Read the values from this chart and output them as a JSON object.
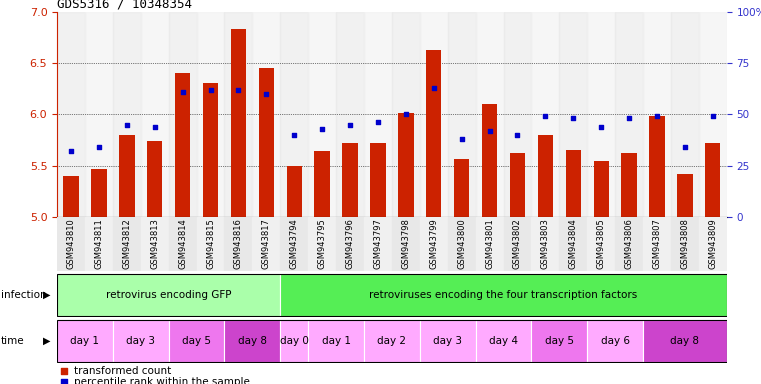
{
  "title": "GDS5316 / 10348354",
  "samples": [
    "GSM943810",
    "GSM943811",
    "GSM943812",
    "GSM943813",
    "GSM943814",
    "GSM943815",
    "GSM943816",
    "GSM943817",
    "GSM943794",
    "GSM943795",
    "GSM943796",
    "GSM943797",
    "GSM943798",
    "GSM943799",
    "GSM943800",
    "GSM943801",
    "GSM943802",
    "GSM943803",
    "GSM943804",
    "GSM943805",
    "GSM943806",
    "GSM943807",
    "GSM943808",
    "GSM943809"
  ],
  "bar_values": [
    5.4,
    5.47,
    5.8,
    5.74,
    6.4,
    6.3,
    6.83,
    6.45,
    5.5,
    5.64,
    5.72,
    5.72,
    6.01,
    6.63,
    5.56,
    6.1,
    5.62,
    5.8,
    5.65,
    5.54,
    5.62,
    5.98,
    5.42,
    5.72
  ],
  "percentile_values": [
    32,
    34,
    45,
    44,
    61,
    62,
    62,
    60,
    40,
    43,
    45,
    46,
    50,
    63,
    38,
    42,
    40,
    49,
    48,
    44,
    48,
    49,
    34,
    49
  ],
  "ylim_left": [
    5.0,
    7.0
  ],
  "ylim_right": [
    0,
    100
  ],
  "yticks_left": [
    5.0,
    5.5,
    6.0,
    6.5,
    7.0
  ],
  "ytick_labels_right": [
    "0",
    "25",
    "50",
    "75",
    "100%"
  ],
  "bar_color": "#cc2200",
  "percentile_color": "#0000cc",
  "bar_bottom": 5.0,
  "infection_groups": [
    {
      "label": "retrovirus encoding GFP",
      "start": 0,
      "end": 8,
      "color": "#aaffaa"
    },
    {
      "label": "retroviruses encoding the four transcription factors",
      "start": 8,
      "end": 24,
      "color": "#55ee55"
    }
  ],
  "time_groups": [
    {
      "label": "day 1",
      "start": 0,
      "end": 2,
      "color": "#ffaaff"
    },
    {
      "label": "day 3",
      "start": 2,
      "end": 4,
      "color": "#ffaaff"
    },
    {
      "label": "day 5",
      "start": 4,
      "end": 6,
      "color": "#ee77ee"
    },
    {
      "label": "day 8",
      "start": 6,
      "end": 8,
      "color": "#cc44cc"
    },
    {
      "label": "day 0",
      "start": 8,
      "end": 9,
      "color": "#ffaaff"
    },
    {
      "label": "day 1",
      "start": 9,
      "end": 11,
      "color": "#ffaaff"
    },
    {
      "label": "day 2",
      "start": 11,
      "end": 13,
      "color": "#ffaaff"
    },
    {
      "label": "day 3",
      "start": 13,
      "end": 15,
      "color": "#ffaaff"
    },
    {
      "label": "day 4",
      "start": 15,
      "end": 17,
      "color": "#ffaaff"
    },
    {
      "label": "day 5",
      "start": 17,
      "end": 19,
      "color": "#ee77ee"
    },
    {
      "label": "day 6",
      "start": 19,
      "end": 21,
      "color": "#ffaaff"
    },
    {
      "label": "day 8",
      "start": 21,
      "end": 24,
      "color": "#cc44cc"
    }
  ],
  "legend_items": [
    {
      "label": "transformed count",
      "color": "#cc2200"
    },
    {
      "label": "percentile rank within the sample",
      "color": "#0000cc"
    }
  ],
  "background_color": "#ffffff",
  "col_bg_even": "#e8e8e8",
  "col_bg_odd": "#f0f0f0"
}
